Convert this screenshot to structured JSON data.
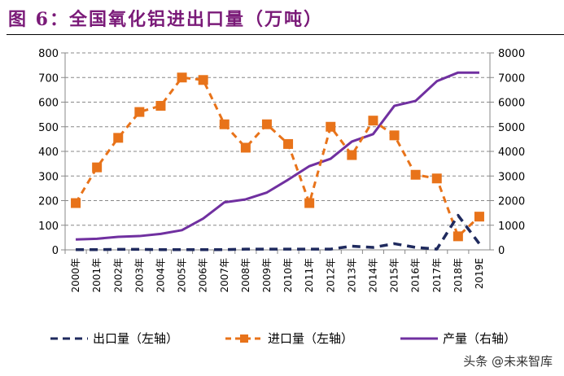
{
  "title": "图 6：全国氧化铝进出口量（万吨）",
  "watermark": "头条 @未来智库",
  "chart_data": {
    "type": "line",
    "title": "图 6：全国氧化铝进出口量（万吨）",
    "categories": [
      "2000年",
      "2001年",
      "2002年",
      "2003年",
      "2004年",
      "2005年",
      "2006年",
      "2007年",
      "2008年",
      "2009年",
      "2010年",
      "2011年",
      "2012年",
      "2013年",
      "2014年",
      "2015年",
      "2016年",
      "2017年",
      "2018年",
      "2019E"
    ],
    "y_left": {
      "range": [
        0,
        800
      ],
      "ticks": [
        "0",
        "100",
        "200",
        "300",
        "400",
        "500",
        "600",
        "700",
        "800"
      ]
    },
    "y_right": {
      "range": [
        0,
        8000
      ],
      "ticks": [
        "0",
        "1000",
        "2000",
        "3000",
        "4000",
        "5000",
        "6000",
        "7000",
        "8000"
      ]
    },
    "grid": true,
    "legend_position": "bottom",
    "series": [
      {
        "name": "出口量（左轴）",
        "axis": "left",
        "color": "#1f2a5e",
        "style": "dashed",
        "values": [
          1,
          1,
          2,
          2,
          1,
          1,
          1,
          1,
          3,
          3,
          3,
          3,
          3,
          15,
          10,
          25,
          10,
          3,
          140,
          25
        ]
      },
      {
        "name": "进口量（左轴）",
        "axis": "left",
        "color": "#e8731a",
        "style": "dashed-square",
        "values": [
          190,
          335,
          455,
          560,
          585,
          700,
          690,
          510,
          415,
          510,
          430,
          190,
          500,
          385,
          525,
          465,
          305,
          290,
          55,
          135
        ]
      },
      {
        "name": "产量（右轴）",
        "axis": "right",
        "color": "#7030a0",
        "style": "solid",
        "values": [
          420,
          450,
          530,
          560,
          650,
          800,
          1270,
          1930,
          2050,
          2330,
          2850,
          3400,
          3700,
          4400,
          4700,
          5850,
          6050,
          6850,
          7200,
          7200
        ]
      }
    ]
  }
}
